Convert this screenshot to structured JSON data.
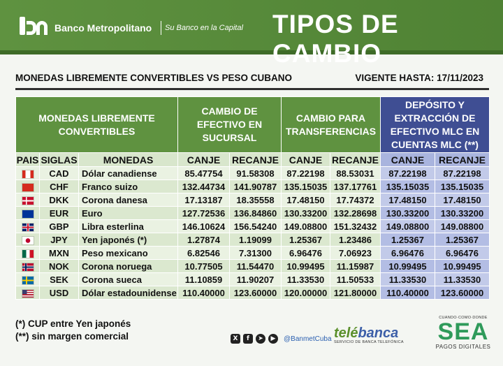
{
  "header": {
    "bank_name": "Banco Metropolitano",
    "slogan": "Su Banco en la Capital",
    "title": "TIPOS DE CAMBIO"
  },
  "subheader": {
    "left": "MONEDAS LIBREMENTE CONVERTIBLES VS PESO CUBANO",
    "right": "VIGENTE HASTA: 17/11/2023"
  },
  "table": {
    "group_headers": {
      "monedas": "MONEDAS LIBREMENTE CONVERTIBLES",
      "efectivo": "CAMBIO DE EFECTIVO EN SUCURSAL",
      "transferencias": "CAMBIO PARA TRANSFERENCIAS",
      "mlc": "DEPÓSITO Y EXTRACCIÓN DE EFECTIVO MLC EN CUENTAS MLC (**)"
    },
    "column_headers": {
      "pais": "PAIS",
      "siglas": "SIGLAS",
      "monedas": "MONEDAS",
      "canje": "CANJE",
      "recanje": "RECANJE"
    },
    "rows": [
      {
        "flag": "ca",
        "code": "CAD",
        "name": "Dólar canadiense",
        "ef_canje": "85.47754",
        "ef_recanje": "91.58308",
        "tr_canje": "87.22198",
        "tr_recanje": "88.53031",
        "mlc_canje": "87.22198",
        "mlc_recanje": "87.22198"
      },
      {
        "flag": "ch",
        "code": "CHF",
        "name": "Franco suizo",
        "ef_canje": "132.44734",
        "ef_recanje": "141.90787",
        "tr_canje": "135.15035",
        "tr_recanje": "137.17761",
        "mlc_canje": "135.15035",
        "mlc_recanje": "135.15035"
      },
      {
        "flag": "dk",
        "code": "DKK",
        "name": "Corona danesa",
        "ef_canje": "17.13187",
        "ef_recanje": "18.35558",
        "tr_canje": "17.48150",
        "tr_recanje": "17.74372",
        "mlc_canje": "17.48150",
        "mlc_recanje": "17.48150"
      },
      {
        "flag": "eu",
        "code": "EUR",
        "name": "Euro",
        "ef_canje": "127.72536",
        "ef_recanje": "136.84860",
        "tr_canje": "130.33200",
        "tr_recanje": "132.28698",
        "mlc_canje": "130.33200",
        "mlc_recanje": "130.33200"
      },
      {
        "flag": "gb",
        "code": "GBP",
        "name": "Libra esterlina",
        "ef_canje": "146.10624",
        "ef_recanje": "156.54240",
        "tr_canje": "149.08800",
        "tr_recanje": "151.32432",
        "mlc_canje": "149.08800",
        "mlc_recanje": "149.08800"
      },
      {
        "flag": "jp",
        "code": "JPY",
        "name": "Yen japonés (*)",
        "ef_canje": "1.27874",
        "ef_recanje": "1.19099",
        "tr_canje": "1.25367",
        "tr_recanje": "1.23486",
        "mlc_canje": "1.25367",
        "mlc_recanje": "1.25367"
      },
      {
        "flag": "mx",
        "code": "MXN",
        "name": "Peso mexicano",
        "ef_canje": "6.82546",
        "ef_recanje": "7.31300",
        "tr_canje": "6.96476",
        "tr_recanje": "7.06923",
        "mlc_canje": "6.96476",
        "mlc_recanje": "6.96476"
      },
      {
        "flag": "no",
        "code": "NOK",
        "name": "Corona noruega",
        "ef_canje": "10.77505",
        "ef_recanje": "11.54470",
        "tr_canje": "10.99495",
        "tr_recanje": "11.15987",
        "mlc_canje": "10.99495",
        "mlc_recanje": "10.99495"
      },
      {
        "flag": "se",
        "code": "SEK",
        "name": "Corona sueca",
        "ef_canje": "11.10859",
        "ef_recanje": "11.90207",
        "tr_canje": "11.33530",
        "tr_recanje": "11.50533",
        "mlc_canje": "11.33530",
        "mlc_recanje": "11.33530"
      },
      {
        "flag": "us",
        "code": "USD",
        "name": "Dólar estadounidense",
        "ef_canje": "110.40000",
        "ef_recanje": "123.60000",
        "tr_canje": "120.00000",
        "tr_recanje": "121.80000",
        "mlc_canje": "110.40000",
        "mlc_recanje": "123.60000"
      }
    ]
  },
  "footer": {
    "note1": "(*) CUP entre Yen japonés",
    "note2": "(**) sin margen comercial",
    "social_handle": "@BanmetCuba",
    "telebanca_name_a": "telé",
    "telebanca_name_b": "banca",
    "telebanca_sub": "SERVICIO DE BANCA TELEFÓNICA",
    "sea_top": "CUANDO·COMO·DONDE",
    "sea_big": "SEA",
    "sea_bottom": "PAGOS DIGITALES"
  },
  "colors": {
    "green": "#5f9240",
    "blue": "#3f4e93"
  }
}
